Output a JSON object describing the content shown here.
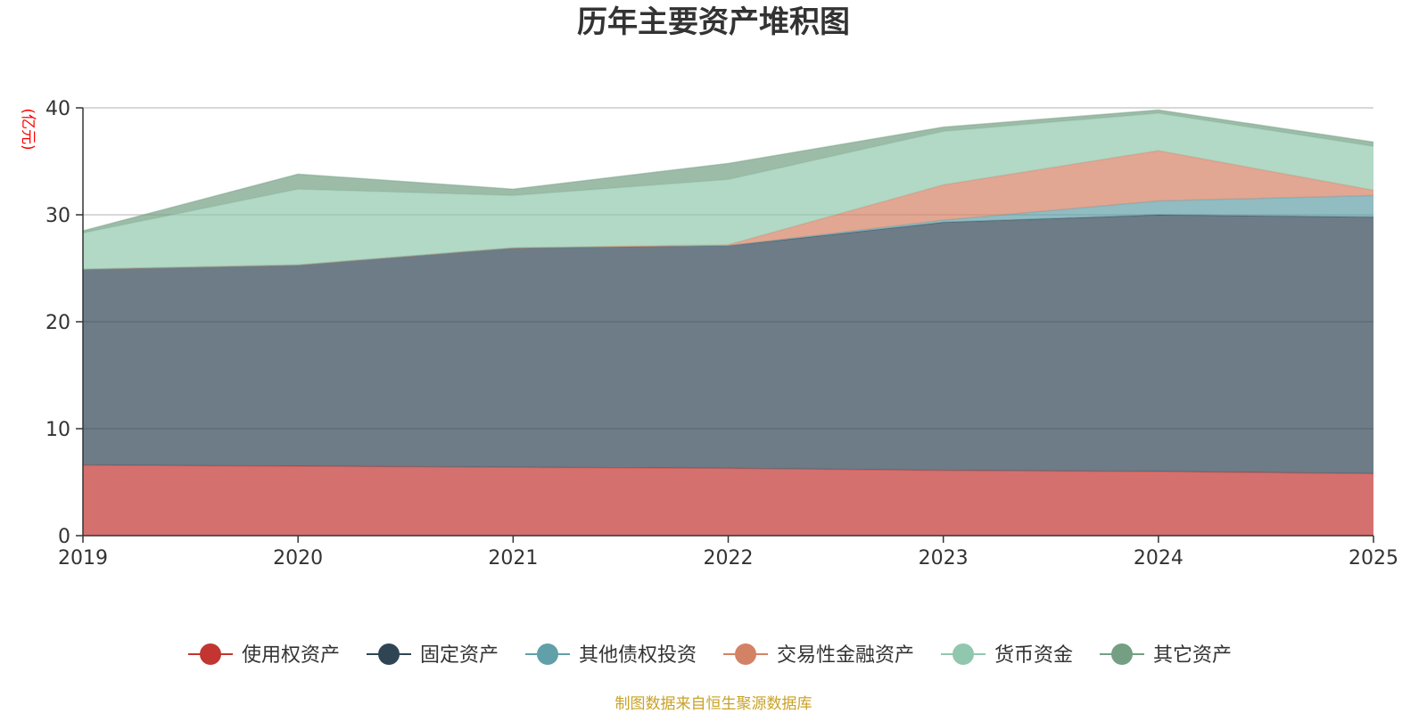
{
  "chart_data": {
    "type": "area",
    "stacked": true,
    "title": "历年主要资产堆积图",
    "xlabel": "",
    "ylabel": "(亿元)",
    "categories": [
      "2019",
      "2020",
      "2021",
      "2022",
      "2023",
      "2024",
      "2025"
    ],
    "ylim": [
      0,
      40
    ],
    "yticks": [
      "0",
      "10",
      "20",
      "30",
      "40"
    ],
    "grid": true,
    "legend_position": "bottom",
    "series": [
      {
        "name": "使用权资产",
        "color": "#c23531",
        "values": [
          6.6,
          6.5,
          6.4,
          6.3,
          6.1,
          6.0,
          5.8
        ]
      },
      {
        "name": "固定资产",
        "color": "#2f4554",
        "values": [
          18.3,
          18.8,
          20.5,
          20.8,
          23.2,
          24.0,
          24.0
        ]
      },
      {
        "name": "其他债权投资",
        "color": "#61a0a8",
        "values": [
          0,
          0,
          0,
          0,
          0.2,
          1.3,
          2.0
        ]
      },
      {
        "name": "交易性金融资产",
        "color": "#d48265",
        "values": [
          0,
          0,
          0,
          0.1,
          3.3,
          4.7,
          0.5
        ]
      },
      {
        "name": "货币资金",
        "color": "#91c7ae",
        "values": [
          3.4,
          7.1,
          4.9,
          6.1,
          5.0,
          3.5,
          4.1
        ]
      },
      {
        "name": "其它资产",
        "color": "#749f83",
        "values": [
          0.2,
          1.4,
          0.6,
          1.5,
          0.4,
          0.3,
          0.4
        ]
      }
    ],
    "source": "制图数据来自恒生聚源数据库"
  }
}
